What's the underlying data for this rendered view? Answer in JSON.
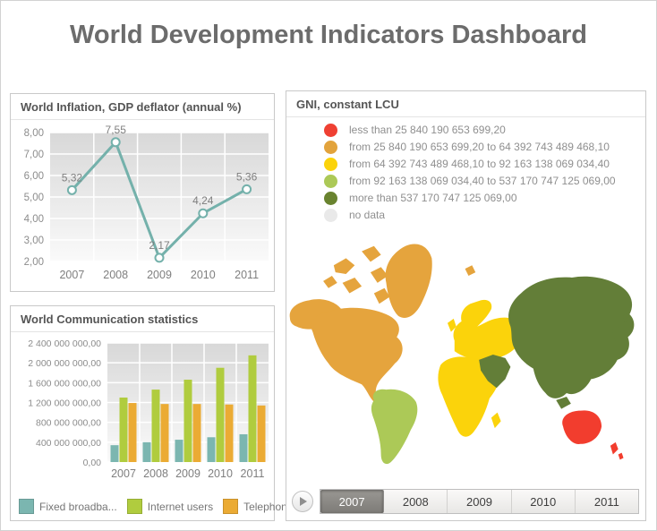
{
  "page_title": "World Development Indicators Dashboard",
  "panels": {
    "inflation": {
      "title": "World Inflation, GDP deflator (annual %)"
    },
    "communication": {
      "title": "World Communication statistics"
    },
    "map": {
      "title": "GNI, constant LCU"
    }
  },
  "timeline": {
    "years": [
      "2007",
      "2008",
      "2009",
      "2010",
      "2011"
    ],
    "selected": "2007",
    "play_icon": "play-icon"
  },
  "colors": {
    "teal": "#7BB6B0",
    "green": "#B0CC3E",
    "orange_bar": "#EBAB34",
    "grid_white": "#FFFFFF",
    "axis_text": "#8C8C8C",
    "panel_border": "#C9C9C9",
    "title_gray": "#6C6C6C"
  },
  "chart_data": [
    {
      "type": "line",
      "title": "World Inflation, GDP deflator (annual %)",
      "x": [
        "2007",
        "2008",
        "2009",
        "2010",
        "2011"
      ],
      "values": [
        5.32,
        7.55,
        2.17,
        4.24,
        5.36
      ],
      "point_labels": [
        "5,32",
        "7,55",
        "2,17",
        "4,24",
        "5,36"
      ],
      "yticks": [
        "8,00",
        "7,00",
        "6,00",
        "5,00",
        "4,00",
        "3,00",
        "2,00"
      ],
      "ylim": [
        2,
        8
      ],
      "color": "#74B1AB",
      "grid": "on",
      "legend": "none"
    },
    {
      "type": "bar",
      "title": "World Communication statistics",
      "categories": [
        "2007",
        "2008",
        "2009",
        "2010",
        "2011"
      ],
      "series": [
        {
          "name": "Fixed broadba...",
          "color": "#7BB6B0",
          "values": [
            340000000,
            400000000,
            450000000,
            500000000,
            560000000
          ]
        },
        {
          "name": "Internet users",
          "color": "#B0CC3E",
          "values": [
            1300000000,
            1460000000,
            1660000000,
            1900000000,
            2150000000
          ]
        },
        {
          "name": "Telephone li...",
          "color": "#EBAB34",
          "values": [
            1190000000,
            1170000000,
            1170000000,
            1160000000,
            1140000000
          ]
        }
      ],
      "ytick_labels": [
        "2 400 000 000,00",
        "2 000 000 000,00",
        "1 600 000 000,00",
        "1 200 000 000,00",
        "800 000 000,00",
        "400 000 000,00",
        "0,00"
      ],
      "ylim": [
        0,
        2400000000
      ],
      "grid": "on",
      "legend_position": "bottom"
    },
    {
      "type": "choropleth",
      "title": "GNI, constant LCU",
      "classes": [
        {
          "color": "#EF4033",
          "label": "less than 25 840 190 653 699,20"
        },
        {
          "color": "#E2A33C",
          "label": "from 25 840 190 653 699,20 to 64 392 743 489 468,10"
        },
        {
          "color": "#FBD30B",
          "label": "from 64 392 743 489 468,10 to 92 163 138 069 034,40"
        },
        {
          "color": "#ACC957",
          "label": "from 92 163 138 069 034,40 to 537 170 747 125 069,00"
        },
        {
          "color": "#69832F",
          "label": "more than 537 170 747 125 069,00"
        },
        {
          "color": "#E9E9E9",
          "label": "no data"
        }
      ],
      "regions": {
        "north_america": "#E5A43D",
        "alaska": "#E5A43D",
        "greenland": "#E5A43D",
        "arctic_islands": "#E5A43D",
        "iceland": "#E5A43D",
        "south_america": "#ACC957",
        "europe": "#FBD30B",
        "united_kingdom": "#FBD30B",
        "africa": "#FBD30B",
        "madagascar": "#FBD30B",
        "asia": "#637E38",
        "middle_east": "#637E38",
        "new_guinea": "#637E38",
        "japan": "#637E38",
        "australia": "#F23D2E",
        "new_zealand": "#F23D2E"
      }
    }
  ]
}
